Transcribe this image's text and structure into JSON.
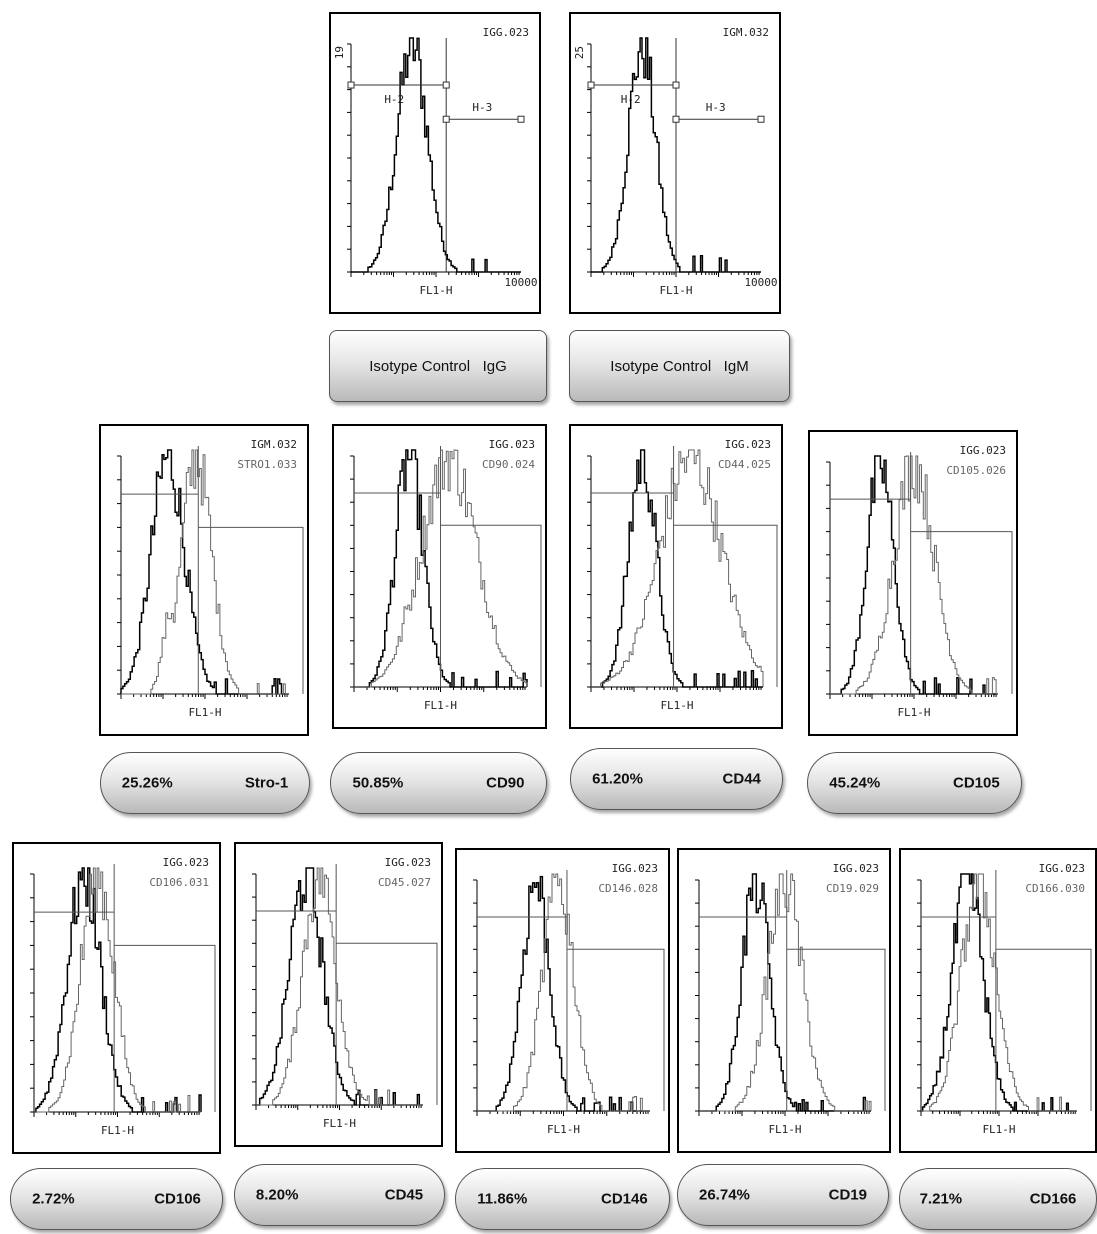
{
  "chart_data": [
    {
      "type": "histogram",
      "id": "igg",
      "file": "IGG.023",
      "ytop": "19",
      "xlabel": "FL1-H",
      "xmax": "10000",
      "gates": [
        "H-2",
        "H-3"
      ],
      "label": "Isotype Control   IgG"
    },
    {
      "type": "histogram",
      "id": "igm",
      "file": "IGM.032",
      "ytop": "25",
      "xlabel": "FL1-H",
      "xmax": "10000",
      "gates": [
        "H-2",
        "H-3"
      ],
      "label": "Isotype Control   IgM"
    },
    {
      "type": "histogram",
      "id": "stro1",
      "file": "IGM.032",
      "sample": "STRO1.033",
      "xlabel": "FL1-H",
      "percent": "25.26%",
      "marker": "Stro-1"
    },
    {
      "type": "histogram",
      "id": "cd90",
      "file": "IGG.023",
      "sample": "CD90.024",
      "xlabel": "FL1-H",
      "percent": "50.85%",
      "marker": "CD90"
    },
    {
      "type": "histogram",
      "id": "cd44",
      "file": "IGG.023",
      "sample": "CD44.025",
      "xlabel": "FL1-H",
      "percent": "61.20%",
      "marker": "CD44"
    },
    {
      "type": "histogram",
      "id": "cd105",
      "file": "IGG.023",
      "sample": "CD105.026",
      "xlabel": "FL1-H",
      "percent": "45.24%",
      "marker": "CD105"
    },
    {
      "type": "histogram",
      "id": "cd106",
      "file": "IGG.023",
      "sample": "CD106.031",
      "xlabel": "FL1-H",
      "percent": "2.72%",
      "marker": "CD106"
    },
    {
      "type": "histogram",
      "id": "cd45",
      "file": "IGG.023",
      "sample": "CD45.027",
      "xlabel": "FL1-H",
      "percent": "8.20%",
      "marker": "CD45"
    },
    {
      "type": "histogram",
      "id": "cd146",
      "file": "IGG.023",
      "sample": "CD146.028",
      "xlabel": "FL1-H",
      "percent": "11.86%",
      "marker": "CD146"
    },
    {
      "type": "histogram",
      "id": "cd19",
      "file": "IGG.023",
      "sample": "CD19.029",
      "xlabel": "FL1-H",
      "percent": "26.74%",
      "marker": "CD19"
    },
    {
      "type": "histogram",
      "id": "cd166",
      "file": "IGG.023",
      "sample": "CD166.030",
      "xlabel": "FL1-H",
      "percent": "7.21%",
      "marker": "CD166"
    }
  ]
}
